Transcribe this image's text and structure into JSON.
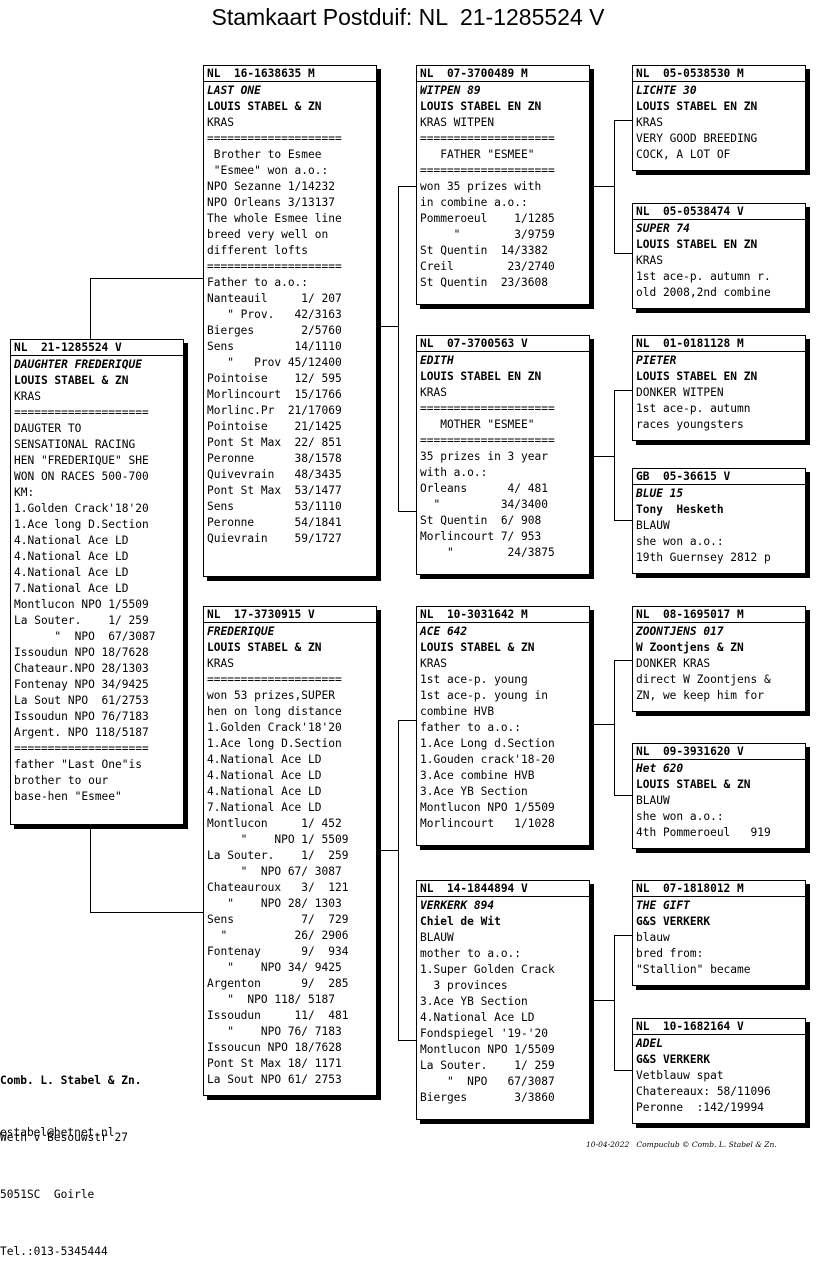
{
  "title": "Stamkaart Postduif: NL  21-1285524 V",
  "cards": [
    {
      "id": "subject",
      "ring": "NL  21-1285524 V",
      "name": "DAUGHTER FREDERIQUE",
      "breeder": "LOUIS STABEL & ZN",
      "color": "KRAS",
      "lines": [
        "====================",
        "DAUGTER TO",
        "SENSATIONAL RACING",
        "HEN \"FREDERIQUE\" SHE",
        "WON ON RACES 500-700",
        "KM:",
        "1.Golden Crack'18'20",
        "1.Ace long D.Section",
        "4.National Ace LD",
        "4.National Ace LD",
        "4.National Ace LD",
        "7.National Ace LD",
        "Montlucon NPO 1/5509",
        "La Souter.    1/ 259",
        "      \"  NPO  67/3087",
        "Issoudun NPO 18/7628",
        "Chateaur.NPO 28/1303",
        "Fontenay NPO 34/9425",
        "La Sout NPO  61/2753",
        "Issoudun NPO 76/7183",
        "Argent. NPO 118/5187",
        "====================",
        "father \"Last One\"is",
        "brother to our",
        "base-hen \"Esmee\""
      ]
    },
    {
      "id": "father",
      "ring": "NL  16-1638635 M",
      "name": "LAST ONE",
      "breeder": "LOUIS STABEL & ZN",
      "color": "KRAS",
      "lines": [
        "====================",
        " Brother to Esmee",
        " \"Esmee\" won a.o.:",
        "NPO Sezanne 1/14232",
        "NPO Orleans 3/13137",
        "The whole Esmee line",
        "breed very well on",
        "different lofts",
        "====================",
        "Father to a.o.:",
        "Nanteauil     1/ 207",
        "   \" Prov.   42/3163",
        "Bierges       2/5760",
        "Sens         14/1110",
        "   \"   Prov 45/12400",
        "Pointoise    12/ 595",
        "Morlincourt  15/1766",
        "Morlinc.Pr  21/17069",
        "Pointoise    21/1425",
        "Pont St Max  22/ 851",
        "Peronne      38/1578",
        "Quivevrain   48/3435",
        "Pont St Max  53/1477",
        "Sens         53/1110",
        "Peronne      54/1841",
        "Quievrain    59/1727"
      ]
    },
    {
      "id": "mother",
      "ring": "NL  17-3730915 V",
      "name": "FREDERIQUE",
      "breeder": "LOUIS STABEL & ZN",
      "color": "KRAS",
      "lines": [
        "====================",
        "won 53 prizes,SUPER",
        "hen on long distance",
        "1.Golden Crack'18'20",
        "1.Ace long D.Section",
        "4.National Ace LD",
        "4.National Ace LD",
        "4.National Ace LD",
        "7.National Ace LD",
        "Montlucon     1/ 452",
        "     \"    NPO 1/ 5509",
        "La Souter.    1/  259",
        "     \"  NPO 67/ 3087",
        "Chateauroux   3/  121",
        "   \"    NPO 28/ 1303",
        "Sens          7/  729",
        "  \"          26/ 2906",
        "Fontenay      9/  934",
        "   \"    NPO 34/ 9425",
        "Argenton      9/  285",
        "   \"  NPO 118/ 5187",
        "Issoudun     11/  481",
        "   \"    NPO 76/ 7183",
        "Issoucun NPO 18/7628",
        "Pont St Max 18/ 1171",
        "La Sout NPO 61/ 2753"
      ]
    },
    {
      "id": "ff",
      "ring": "NL  07-3700489 M",
      "name": "WITPEN 89",
      "breeder": "LOUIS STABEL EN ZN",
      "color": "KRAS WITPEN",
      "lines": [
        "====================",
        "   FATHER \"ESMEE\"",
        "====================",
        "won 35 prizes with",
        "in combine a.o.:",
        "Pommeroeul    1/1285",
        "     \"        3/9759",
        "St Quentin  14/3382",
        "Creil        23/2740",
        "St Quentin  23/3608"
      ]
    },
    {
      "id": "fm",
      "ring": "NL  07-3700563 V",
      "name": "EDITH",
      "breeder": "LOUIS STABEL EN ZN",
      "color": "KRAS",
      "lines": [
        "====================",
        "   MOTHER \"ESMEE\"",
        "====================",
        "35 prizes in 3 year",
        "with a.o.:",
        "Orleans      4/ 481",
        "  \"         34/3400",
        "St Quentin  6/ 908",
        "Morlincourt 7/ 953",
        "    \"        24/3875"
      ]
    },
    {
      "id": "mf",
      "ring": "NL  10-3031642 M",
      "name": "ACE 642",
      "breeder": "LOUIS STABEL & ZN",
      "color": "KRAS",
      "lines": [
        "1st ace-p. young",
        "1st ace-p. young in",
        "combine HVB",
        "father to a.o.:",
        "1.Ace Long d.Section",
        "1.Gouden crack'18-20",
        "3.Ace combine HVB",
        "3.Ace YB Section",
        "Montlucon NPO 1/5509",
        "Morlincourt   1/1028"
      ]
    },
    {
      "id": "mm",
      "ring": "NL  14-1844894 V",
      "name": "VERKERK 894",
      "breeder": "Chiel de Wit",
      "color": "BLAUW",
      "lines": [
        "mother to a.o.:",
        "1.Super Golden Crack",
        "  3 provinces",
        "3.Ace YB Section",
        "4.National Ace LD",
        "Fondspiegel '19-'20",
        "Montlucon NPO 1/5509",
        "La Souter.    1/ 259",
        "    \"  NPO   67/3087",
        "Bierges       3/3860"
      ]
    },
    {
      "id": "fff",
      "ring": "NL  05-0538530 M",
      "name": "LICHTE 30",
      "breeder": "LOUIS STABEL EN ZN",
      "color": "KRAS",
      "lines": [
        "VERY GOOD BREEDING",
        "COCK, A LOT OF"
      ]
    },
    {
      "id": "ffm",
      "ring": "NL  05-0538474 V",
      "name": "SUPER 74",
      "breeder": "LOUIS STABEL EN ZN",
      "color": "KRAS",
      "lines": [
        "1st ace-p. autumn r.",
        "old 2008,2nd combine"
      ]
    },
    {
      "id": "fmf",
      "ring": "NL  01-0181128 M",
      "name": "PIETER",
      "breeder": "LOUIS STABEL EN ZN",
      "color": "DONKER WITPEN",
      "lines": [
        "1st ace-p. autumn",
        "races youngsters"
      ]
    },
    {
      "id": "fmm",
      "ring": "GB  05-36615 V",
      "name": "BLUE 15",
      "breeder": "Tony  Hesketh",
      "color": "BLAUW",
      "lines": [
        "she won a.o.:",
        "19th Guernsey 2812 p"
      ]
    },
    {
      "id": "mff",
      "ring": "NL  08-1695017 M",
      "name": "ZOONTJENS 017",
      "breeder": "W Zoontjens & ZN",
      "color": "DONKER KRAS",
      "lines": [
        "direct W Zoontjens &",
        "ZN, we keep him for"
      ]
    },
    {
      "id": "mfm",
      "ring": "NL  09-3931620 V",
      "name": "Het 620",
      "breeder": "LOUIS STABEL & ZN",
      "color": "BLAUW",
      "lines": [
        "she won a.o.:",
        "4th Pommeroeul   919"
      ]
    },
    {
      "id": "mmf",
      "ring": "NL  07-1818012 M",
      "name": "THE GIFT",
      "breeder": "G&S VERKERK",
      "color": "blauw",
      "lines": [
        "bred from:",
        "\"Stallion\" became"
      ]
    },
    {
      "id": "mmm",
      "ring": "NL  10-1682164 V",
      "name": "ADEL",
      "breeder": "G&S VERKERK",
      "color": "Vetblauw spat",
      "lines": [
        "Chatereaux: 58/11096",
        "Peronne  :142/19994"
      ]
    }
  ],
  "footer": {
    "company": "Comb. L. Stabel & Zn.",
    "street": "Weth v Besouwstr 27",
    "city": "5051SC  Goirle",
    "phone": "Tel.:013-5345444",
    "email": "estabel@hetnet.nl"
  },
  "stamp": {
    "date": "10-04-2022",
    "text": "Compuclub © Comb. L. Stabel & Zn."
  }
}
